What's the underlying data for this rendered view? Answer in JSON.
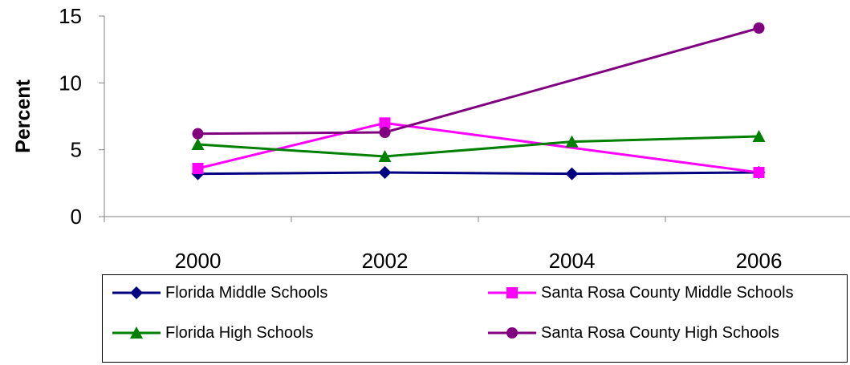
{
  "chart_data": {
    "type": "line",
    "title": "",
    "xlabel": "",
    "ylabel": "Percent",
    "categories": [
      "2000",
      "2002",
      "2004",
      "2006"
    ],
    "ylim": [
      0,
      15
    ],
    "yticks": [
      0,
      5,
      10,
      15
    ],
    "grid": false,
    "legend_position": "bottom",
    "series": [
      {
        "name": "Florida Middle Schools",
        "color": "#000080",
        "marker": "diamond",
        "values": [
          3.2,
          3.3,
          3.2,
          3.3
        ]
      },
      {
        "name": "Santa Rosa County Middle Schools",
        "color": "#FF00FF",
        "marker": "square",
        "values": [
          3.6,
          7.0,
          null,
          3.3
        ]
      },
      {
        "name": "Florida High Schools",
        "color": "#008000",
        "marker": "triangle",
        "values": [
          5.4,
          4.5,
          5.6,
          6.0
        ]
      },
      {
        "name": "Santa Rosa County High Schools",
        "color": "#800080",
        "marker": "circle",
        "values": [
          6.2,
          6.3,
          null,
          14.1
        ]
      }
    ]
  }
}
